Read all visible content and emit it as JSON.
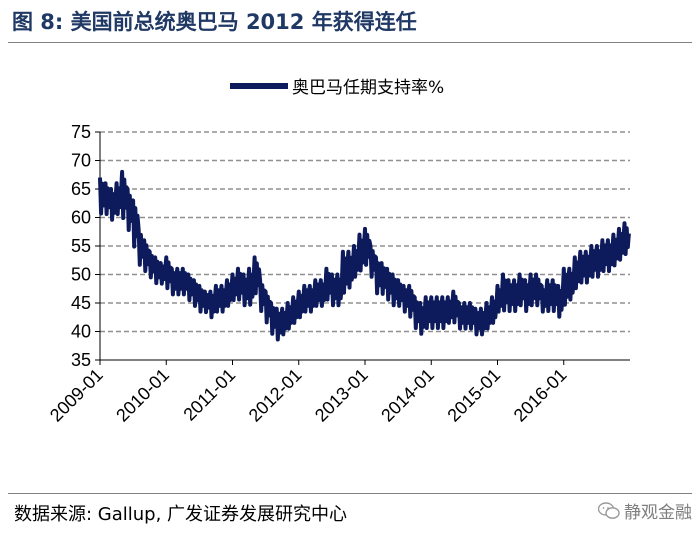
{
  "figure": {
    "title": "图 8:  美国前总统奥巴马 2012 年获得连任",
    "source": "数据来源:  Gallup,  广发证券发展研究中心",
    "watermark": "静观金融"
  },
  "colors": {
    "series": "#0d1a5c",
    "title": "#1f3864",
    "grid": "#909090"
  },
  "chart_data": {
    "type": "line",
    "title": "",
    "xlabel": "",
    "ylabel": "",
    "ylim": [
      35,
      75
    ],
    "yticks": [
      35,
      40,
      45,
      50,
      55,
      60,
      65,
      70,
      75
    ],
    "xlim": [
      "2009-01",
      "2016-12"
    ],
    "xticks": [
      "2009-01",
      "2010-01",
      "2011-01",
      "2012-01",
      "2013-01",
      "2014-01",
      "2015-01",
      "2016-01"
    ],
    "grid": "horizontal dashed",
    "legend": "top-center",
    "series": [
      {
        "name": "奥巴马任期支持率%",
        "x": [
          "2009-01",
          "2009-02",
          "2009-03",
          "2009-04",
          "2009-05",
          "2009-06",
          "2009-07",
          "2009-08",
          "2009-09",
          "2009-10",
          "2009-11",
          "2009-12",
          "2010-01",
          "2010-02",
          "2010-03",
          "2010-04",
          "2010-05",
          "2010-06",
          "2010-07",
          "2010-08",
          "2010-09",
          "2010-10",
          "2010-11",
          "2010-12",
          "2011-01",
          "2011-02",
          "2011-03",
          "2011-04",
          "2011-05",
          "2011-06",
          "2011-07",
          "2011-08",
          "2011-09",
          "2011-10",
          "2011-11",
          "2011-12",
          "2012-01",
          "2012-02",
          "2012-03",
          "2012-04",
          "2012-05",
          "2012-06",
          "2012-07",
          "2012-08",
          "2012-09",
          "2012-10",
          "2012-11",
          "2012-12",
          "2013-01",
          "2013-02",
          "2013-03",
          "2013-04",
          "2013-05",
          "2013-06",
          "2013-07",
          "2013-08",
          "2013-09",
          "2013-10",
          "2013-11",
          "2013-12",
          "2014-01",
          "2014-02",
          "2014-03",
          "2014-04",
          "2014-05",
          "2014-06",
          "2014-07",
          "2014-08",
          "2014-09",
          "2014-10",
          "2014-11",
          "2014-12",
          "2015-01",
          "2015-02",
          "2015-03",
          "2015-04",
          "2015-05",
          "2015-06",
          "2015-07",
          "2015-08",
          "2015-09",
          "2015-10",
          "2015-11",
          "2015-12",
          "2016-01",
          "2016-02",
          "2016-03",
          "2016-04",
          "2016-05",
          "2016-06",
          "2016-07",
          "2016-08",
          "2016-09",
          "2016-10",
          "2016-11",
          "2016-12"
        ],
        "low": [
          60,
          60,
          59,
          60,
          59,
          57,
          54,
          51,
          50,
          49,
          48,
          48,
          47,
          46,
          46,
          46,
          45,
          44,
          43,
          43,
          42,
          43,
          43,
          44,
          45,
          45,
          44,
          44,
          46,
          43,
          41,
          39,
          38,
          39,
          40,
          41,
          42,
          43,
          43,
          44,
          44,
          45,
          44,
          44,
          46,
          47,
          49,
          50,
          51,
          49,
          46,
          46,
          45,
          44,
          44,
          43,
          42,
          40,
          39,
          40,
          40,
          40,
          40,
          41,
          41,
          40,
          40,
          40,
          39,
          39,
          40,
          41,
          43,
          43,
          43,
          43,
          44,
          43,
          44,
          44,
          43,
          43,
          43,
          42,
          44,
          45,
          47,
          48,
          48,
          49,
          49,
          50,
          50,
          51,
          52,
          53
        ],
        "high": [
          67,
          66,
          65,
          66,
          68,
          65,
          63,
          58,
          56,
          54,
          53,
          52,
          53,
          51,
          51,
          51,
          50,
          49,
          48,
          47,
          47,
          48,
          48,
          49,
          50,
          51,
          50,
          51,
          53,
          49,
          47,
          45,
          44,
          44,
          45,
          46,
          47,
          48,
          48,
          49,
          49,
          51,
          50,
          50,
          54,
          54,
          55,
          57,
          58,
          55,
          53,
          52,
          51,
          50,
          49,
          48,
          48,
          46,
          45,
          46,
          46,
          46,
          46,
          46,
          47,
          45,
          45,
          45,
          44,
          44,
          45,
          46,
          48,
          50,
          49,
          49,
          50,
          49,
          50,
          50,
          48,
          49,
          49,
          48,
          51,
          51,
          53,
          54,
          54,
          55,
          55,
          56,
          56,
          57,
          58,
          59
        ]
      }
    ]
  }
}
